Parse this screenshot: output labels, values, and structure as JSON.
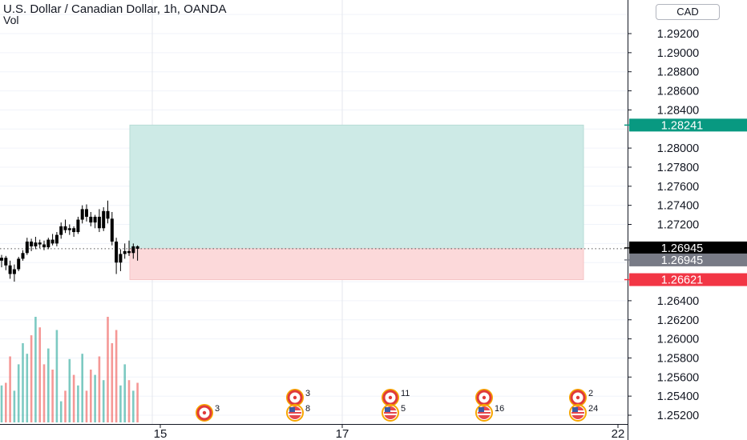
{
  "header": {
    "title": "U.S. Dollar / Canadian Dollar, 1h, OANDA",
    "indicator": "Vol",
    "currency_button": "CAD"
  },
  "colors": {
    "up": "#26a69a",
    "down": "#ef5350",
    "profit_zone": "#cdeae6",
    "loss_zone": "#fcd9da",
    "label_target": "#089981",
    "label_last": "#000000",
    "label_entry": "#787b86",
    "label_stop": "#f23645"
  },
  "chart_data": {
    "type": "candlestick",
    "y_axis_ticks": [
      "1.29200",
      "1.29000",
      "1.28800",
      "1.28600",
      "1.28400",
      "1.28000",
      "1.27800",
      "1.27600",
      "1.27400",
      "1.27200",
      "1.26400",
      "1.26200",
      "1.26000",
      "1.25800",
      "1.25600",
      "1.25400",
      "1.25200"
    ],
    "ylim": [
      1.2505,
      1.2955
    ],
    "x_axis_ticks": [
      "15",
      "17",
      "22"
    ],
    "price_labels": {
      "target": "1.28241",
      "last": "1.26945",
      "entry": "1.26945",
      "stop": "1.26621"
    },
    "position": {
      "entry": 1.26945,
      "target": 1.28241,
      "stop": 1.26621
    },
    "candles": [
      {
        "o": 1.2682,
        "h": 1.2688,
        "l": 1.2675,
        "c": 1.2685
      },
      {
        "o": 1.2685,
        "h": 1.2687,
        "l": 1.2672,
        "c": 1.2677
      },
      {
        "o": 1.2677,
        "h": 1.2682,
        "l": 1.2663,
        "c": 1.2668
      },
      {
        "o": 1.2668,
        "h": 1.2678,
        "l": 1.266,
        "c": 1.2673
      },
      {
        "o": 1.2673,
        "h": 1.2686,
        "l": 1.2671,
        "c": 1.2684
      },
      {
        "o": 1.2684,
        "h": 1.2693,
        "l": 1.2682,
        "c": 1.269
      },
      {
        "o": 1.269,
        "h": 1.2706,
        "l": 1.2688,
        "c": 1.2702
      },
      {
        "o": 1.2702,
        "h": 1.2705,
        "l": 1.2692,
        "c": 1.2697
      },
      {
        "o": 1.2697,
        "h": 1.2707,
        "l": 1.2694,
        "c": 1.2701
      },
      {
        "o": 1.2701,
        "h": 1.2704,
        "l": 1.2695,
        "c": 1.2699
      },
      {
        "o": 1.2699,
        "h": 1.2703,
        "l": 1.2693,
        "c": 1.2696
      },
      {
        "o": 1.2696,
        "h": 1.2706,
        "l": 1.2694,
        "c": 1.2704
      },
      {
        "o": 1.2704,
        "h": 1.271,
        "l": 1.2698,
        "c": 1.27
      },
      {
        "o": 1.27,
        "h": 1.2712,
        "l": 1.2697,
        "c": 1.2709
      },
      {
        "o": 1.2709,
        "h": 1.2722,
        "l": 1.2705,
        "c": 1.2718
      },
      {
        "o": 1.2718,
        "h": 1.2725,
        "l": 1.2711,
        "c": 1.2714
      },
      {
        "o": 1.2714,
        "h": 1.272,
        "l": 1.2709,
        "c": 1.2716
      },
      {
        "o": 1.2716,
        "h": 1.2718,
        "l": 1.2707,
        "c": 1.2712
      },
      {
        "o": 1.2712,
        "h": 1.2728,
        "l": 1.271,
        "c": 1.2725
      },
      {
        "o": 1.2725,
        "h": 1.274,
        "l": 1.2721,
        "c": 1.2736
      },
      {
        "o": 1.2736,
        "h": 1.2741,
        "l": 1.2723,
        "c": 1.2728
      },
      {
        "o": 1.2728,
        "h": 1.2733,
        "l": 1.2718,
        "c": 1.2722
      },
      {
        "o": 1.2722,
        "h": 1.273,
        "l": 1.2716,
        "c": 1.2728
      },
      {
        "o": 1.2728,
        "h": 1.2736,
        "l": 1.2712,
        "c": 1.2716
      },
      {
        "o": 1.2716,
        "h": 1.2738,
        "l": 1.2713,
        "c": 1.2734
      },
      {
        "o": 1.2734,
        "h": 1.2745,
        "l": 1.2721,
        "c": 1.2726
      },
      {
        "o": 1.2726,
        "h": 1.2733,
        "l": 1.2698,
        "c": 1.2702
      },
      {
        "o": 1.2702,
        "h": 1.2706,
        "l": 1.2668,
        "c": 1.268
      },
      {
        "o": 1.268,
        "h": 1.2694,
        "l": 1.2671,
        "c": 1.2689
      },
      {
        "o": 1.2689,
        "h": 1.27,
        "l": 1.2684,
        "c": 1.2692
      },
      {
        "o": 1.2692,
        "h": 1.2703,
        "l": 1.2687,
        "c": 1.269
      },
      {
        "o": 1.269,
        "h": 1.27,
        "l": 1.2684,
        "c": 1.2697
      },
      {
        "o": 1.2697,
        "h": 1.2698,
        "l": 1.2682,
        "c": 1.26945
      }
    ],
    "volume": [
      14,
      15,
      25,
      12,
      22,
      30,
      26,
      33,
      40,
      36,
      22,
      28,
      20,
      35,
      8,
      12,
      24,
      18,
      14,
      26,
      12,
      20,
      18,
      25,
      16,
      40,
      30,
      35,
      14,
      22,
      16,
      12,
      15
    ],
    "events": [
      {
        "flag": "CA",
        "count": "3",
        "row": "lower"
      },
      {
        "flag": "CA",
        "count": "3",
        "row": "upper"
      },
      {
        "flag": "US",
        "count": "8",
        "row": "lower"
      },
      {
        "flag": "CA",
        "count": "11",
        "row": "upper"
      },
      {
        "flag": "US",
        "count": "5",
        "row": "lower"
      },
      {
        "flag": "CA",
        "count": "",
        "row": "upper"
      },
      {
        "flag": "US",
        "count": "16",
        "row": "lower"
      },
      {
        "flag": "CA",
        "count": "2",
        "row": "upper"
      },
      {
        "flag": "US",
        "count": "24",
        "row": "lower"
      }
    ]
  }
}
